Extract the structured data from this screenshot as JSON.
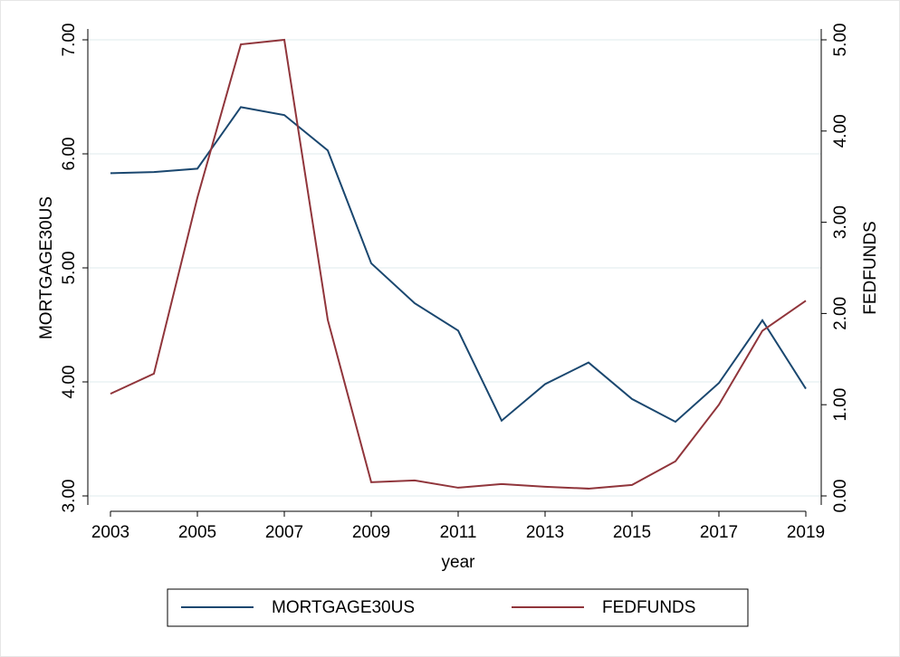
{
  "chart_data": {
    "type": "line",
    "x": [
      2003,
      2004,
      2005,
      2006,
      2007,
      2008,
      2009,
      2010,
      2011,
      2012,
      2013,
      2014,
      2015,
      2016,
      2017,
      2018,
      2019
    ],
    "xlim": [
      2003,
      2019
    ],
    "xticks": [
      2003,
      2005,
      2007,
      2009,
      2011,
      2013,
      2015,
      2017,
      2019
    ],
    "xlabel": "year",
    "ylabel": "MORTGAGE30US",
    "y2label": "FEDFUNDS",
    "ylim": [
      3,
      7
    ],
    "yticks": [
      {
        "value": 3,
        "label": "3.00"
      },
      {
        "value": 4,
        "label": "4.00"
      },
      {
        "value": 5,
        "label": "5.00"
      },
      {
        "value": 6,
        "label": "6.00"
      },
      {
        "value": 7,
        "label": "7.00"
      }
    ],
    "y2lim": [
      0,
      5
    ],
    "y2ticks": [
      {
        "value": 0,
        "label": "0.00"
      },
      {
        "value": 1,
        "label": "1.00"
      },
      {
        "value": 2,
        "label": "2.00"
      },
      {
        "value": 3,
        "label": "3.00"
      },
      {
        "value": 4,
        "label": "4.00"
      },
      {
        "value": 5,
        "label": "5.00"
      }
    ],
    "grid": true,
    "legend": "bottom",
    "series": [
      {
        "name": "MORTGAGE30US",
        "color": "#1a476f",
        "values": [
          5.83,
          5.84,
          5.87,
          6.41,
          6.34,
          6.03,
          5.04,
          4.69,
          4.45,
          3.66,
          3.98,
          4.17,
          3.85,
          3.65,
          3.99,
          4.54,
          3.94
        ]
      },
      {
        "name": "FEDFUNDS",
        "color": "#90353b",
        "axis": "y2",
        "values": [
          1.12,
          1.34,
          3.27,
          4.95,
          5.0,
          1.93,
          0.15,
          0.17,
          0.09,
          0.13,
          0.1,
          0.08,
          0.12,
          0.38,
          1.0,
          1.81,
          2.14
        ]
      }
    ]
  }
}
